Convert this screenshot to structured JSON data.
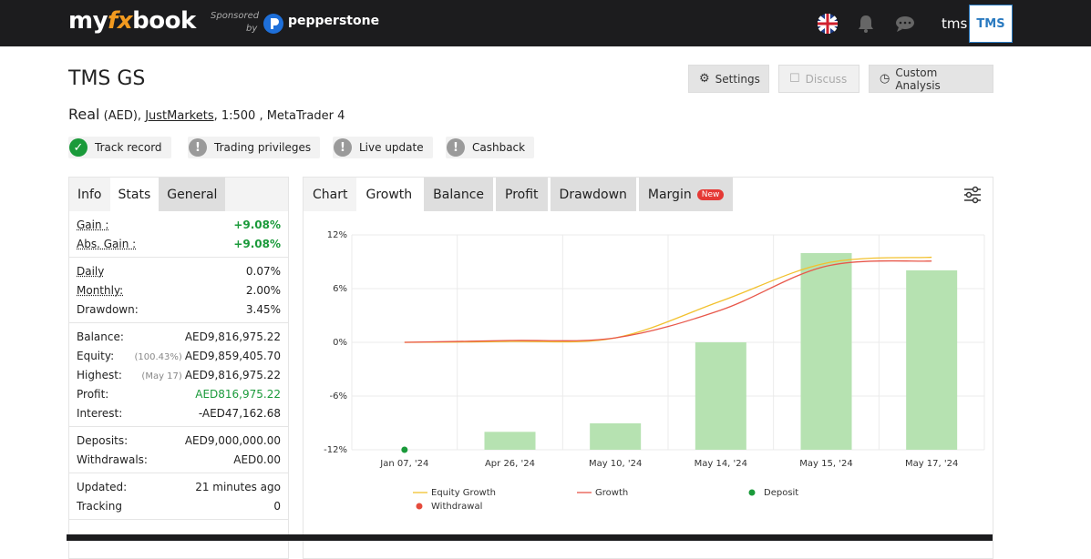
{
  "header": {
    "logo": [
      "my",
      "fx",
      "book"
    ],
    "sponsored": "Sponsored",
    "by": "by",
    "sponsor": "pepperstone",
    "user": "tms",
    "avatar": "TMS"
  },
  "account": {
    "title": "TMS GS",
    "type": "Real",
    "currency": "(AED),",
    "broker": "JustMarkets",
    "details": ", 1:500 , MetaTrader 4"
  },
  "badges": [
    {
      "label": "Track record",
      "ok": true
    },
    {
      "label": "Trading privileges",
      "ok": false
    },
    {
      "label": "Live update",
      "ok": false
    },
    {
      "label": "Cashback",
      "ok": false
    }
  ],
  "buttons": [
    "Settings",
    "Discuss",
    "Custom Analysis"
  ],
  "left_tabs": [
    "Info",
    "Stats",
    "General"
  ],
  "stats": [
    [
      {
        "label": "Gain :",
        "value": "+9.08%",
        "color": "#1a9a3a",
        "dotted": true
      },
      {
        "label": "Abs. Gain :",
        "value": "+9.08%",
        "color": "#1a9a3a",
        "dotted": true
      }
    ],
    [
      {
        "label": "Daily",
        "value": "0.07%",
        "dotted": true
      },
      {
        "label": "Monthly:",
        "value": "2.00%",
        "dotted": true
      },
      {
        "label": "Drawdown:",
        "value": "3.45%"
      }
    ],
    [
      {
        "label": "Balance:",
        "value": "AED9,816,975.22"
      },
      {
        "label": "Equity:",
        "note": "(100.43%)",
        "value": "AED9,859,405.70"
      },
      {
        "label": "Highest:",
        "note": "(May 17)",
        "value": "AED9,816,975.22"
      },
      {
        "label": "Profit:",
        "value": "AED816,975.22",
        "color": "#1a9a3a"
      },
      {
        "label": "Interest:",
        "value": "-AED47,162.68"
      }
    ],
    [
      {
        "label": "Deposits:",
        "value": "AED9,000,000.00"
      },
      {
        "label": "Withdrawals:",
        "value": "AED0.00"
      }
    ],
    [
      {
        "label": "Updated:",
        "value": "21 minutes ago"
      },
      {
        "label": "Tracking",
        "value": "0"
      }
    ]
  ],
  "chart_tabs": [
    "Chart",
    "Growth",
    "Balance",
    "Profit",
    "Drawdown",
    "Margin"
  ],
  "new_badge": "New",
  "chart_data": {
    "type": "bar",
    "categories": [
      "Jan 07, '24",
      "Apr 26, '24",
      "May 10, '24",
      "May 14, '24",
      "May 15, '24",
      "May 17, '24"
    ],
    "bar_color": "#b6e2b1",
    "bar_values": [
      null,
      -10,
      -9.05,
      0,
      9.97,
      8.04
    ],
    "series": [
      {
        "name": "Equity Growth",
        "type": "line",
        "color": "#f2c12e",
        "values": [
          0,
          0.1,
          0.5,
          4.6,
          8.85,
          9.5
        ]
      },
      {
        "name": "Growth",
        "type": "line",
        "color": "#e8574a",
        "values": [
          0,
          0.2,
          0.5,
          3.6,
          8.5,
          9.08
        ]
      },
      {
        "name": "Deposit",
        "type": "marker",
        "color": "#1a9a3a",
        "values": [
          -12,
          null,
          null,
          null,
          null,
          null
        ]
      },
      {
        "name": "Withdrawal",
        "type": "marker",
        "color": "#e54b3c",
        "values": [
          null,
          null,
          null,
          null,
          null,
          null
        ]
      }
    ],
    "ylim": [
      -12,
      12
    ],
    "yticks": [
      {
        "value": 12,
        "label": "12%"
      },
      {
        "value": 6,
        "label": "6%"
      },
      {
        "value": 0,
        "label": "0%"
      },
      {
        "value": -6,
        "label": "-6%"
      },
      {
        "value": -12,
        "label": "-12%"
      }
    ],
    "grid": true
  }
}
